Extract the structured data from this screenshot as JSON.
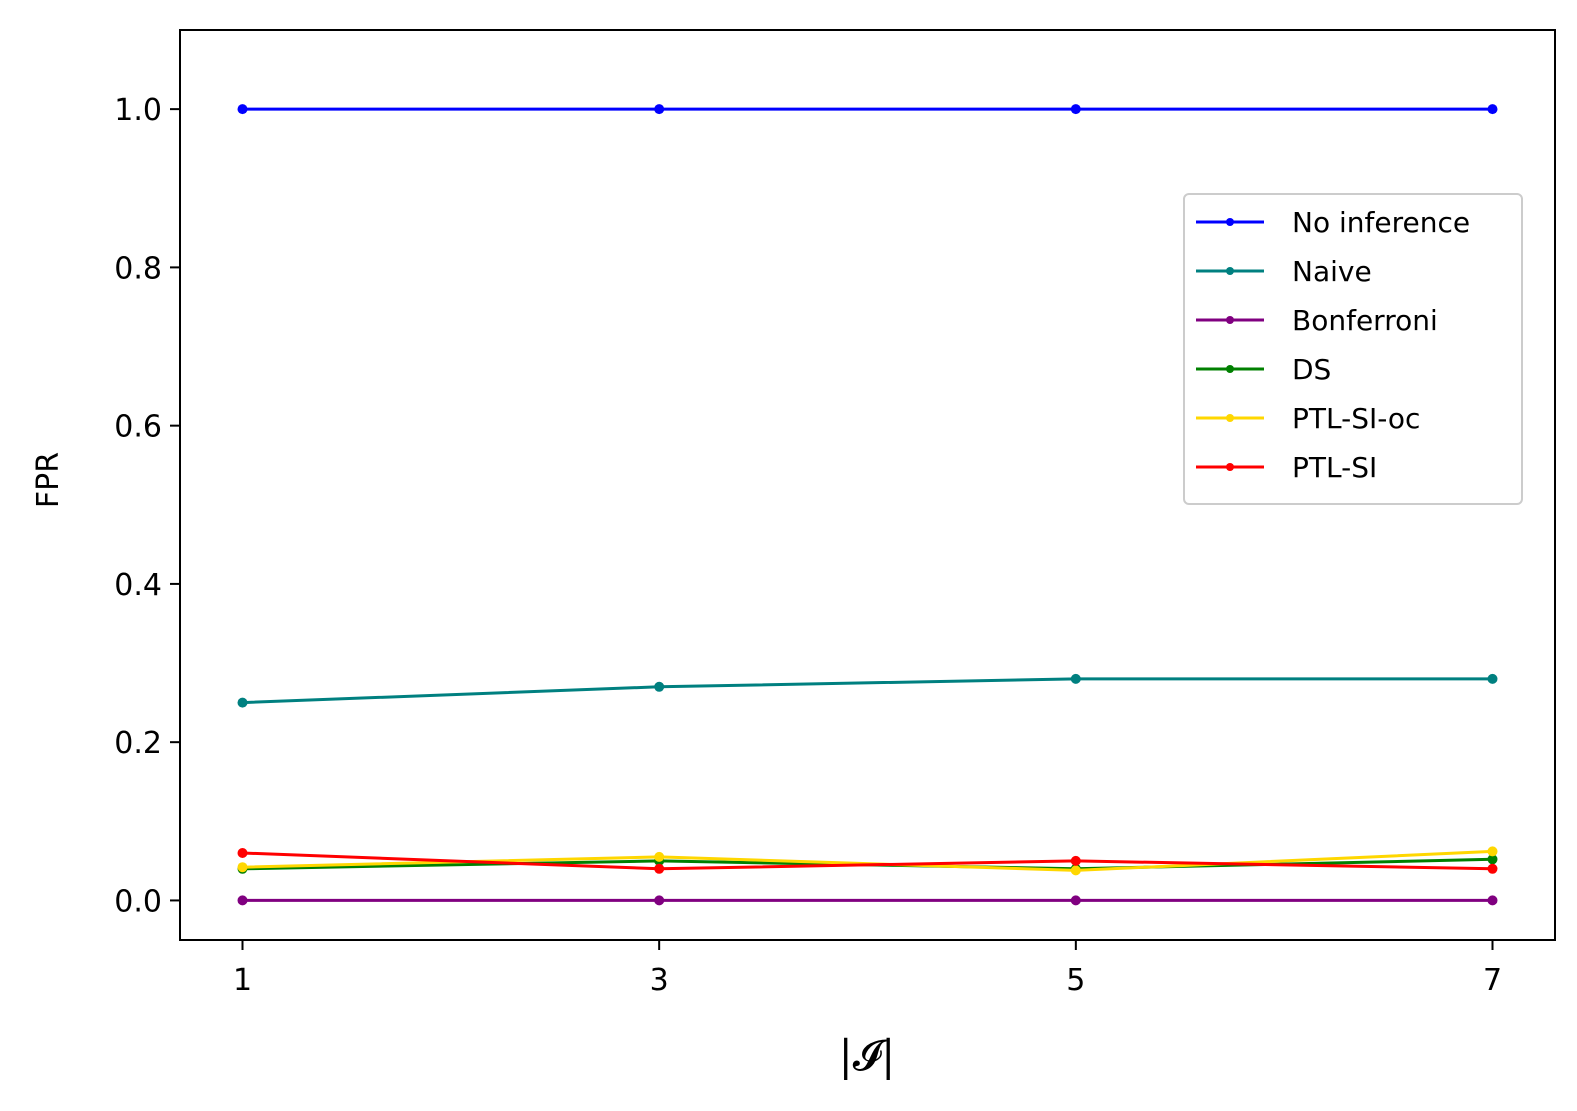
{
  "chart_data": {
    "type": "line",
    "x": [
      1,
      3,
      5,
      7
    ],
    "xticks": [
      "1",
      "3",
      "5",
      "7"
    ],
    "yticks": [
      "0.0",
      "0.2",
      "0.4",
      "0.6",
      "0.8",
      "1.0"
    ],
    "xlim": [
      0.7,
      7.3
    ],
    "ylim": [
      -0.05,
      1.1
    ],
    "xlabel": "|𝓘|",
    "ylabel": "FPR",
    "legend_position": "center-right",
    "series": [
      {
        "name": "No inference",
        "color": "#0000ff",
        "values": [
          1.0,
          1.0,
          1.0,
          1.0
        ]
      },
      {
        "name": "Naive",
        "color": "#008080",
        "values": [
          0.25,
          0.27,
          0.28,
          0.28
        ]
      },
      {
        "name": "Bonferroni",
        "color": "#800080",
        "values": [
          0.0,
          0.0,
          0.0,
          0.0
        ]
      },
      {
        "name": "DS",
        "color": "#008000",
        "values": [
          0.04,
          0.05,
          0.04,
          0.052
        ]
      },
      {
        "name": "PTL-SI-oc",
        "color": "#ffd700",
        "values": [
          0.042,
          0.055,
          0.038,
          0.062
        ]
      },
      {
        "name": "PTL-SI",
        "color": "#ff0000",
        "values": [
          0.06,
          0.04,
          0.05,
          0.04
        ]
      }
    ]
  }
}
